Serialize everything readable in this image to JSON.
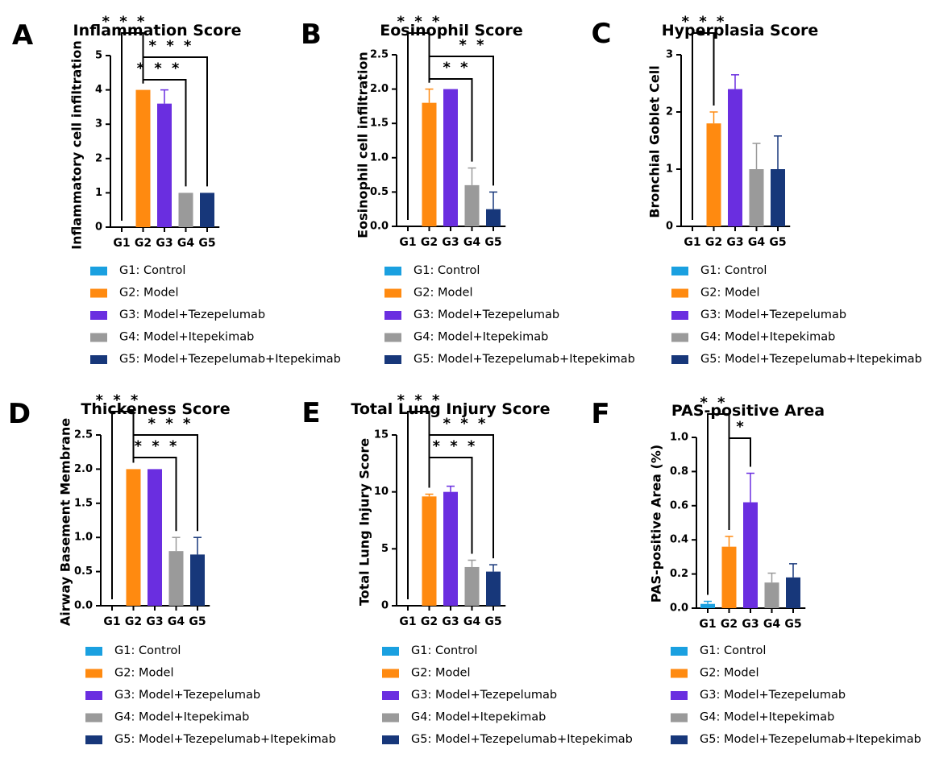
{
  "colors": {
    "G1": "#1aa0e0",
    "G2": "#ff8a10",
    "G3": "#6a2ee0",
    "G4": "#9a9a9a",
    "G5": "#17377a"
  },
  "legend": [
    {
      "key": "G1",
      "label": "G1: Control"
    },
    {
      "key": "G2",
      "label": "G2: Model"
    },
    {
      "key": "G3",
      "label": "G3: Model+Tezepelumab"
    },
    {
      "key": "G4",
      "label": "G4: Model+Itepekimab"
    },
    {
      "key": "G5",
      "label": "G5: Model+Tezepelumab+Itepekimab"
    }
  ],
  "chart_data": [
    {
      "panel": "A",
      "type": "bar",
      "title": "Inflammation Score",
      "ylabel": "Inflammatory cell infiltration",
      "categories": [
        "G1",
        "G2",
        "G3",
        "G4",
        "G5"
      ],
      "values": [
        0,
        4.0,
        3.6,
        1.0,
        1.0
      ],
      "errors": [
        0,
        0,
        0.4,
        0,
        0
      ],
      "ylim": [
        0,
        5
      ],
      "yticks": [
        0,
        1,
        2,
        3,
        4,
        5
      ],
      "significance": [
        {
          "from": "G1",
          "to": "G2",
          "label": "***"
        },
        {
          "from": "G2",
          "to": "G5",
          "label": "***"
        },
        {
          "from": "G2",
          "to": "G4",
          "label": "***"
        }
      ]
    },
    {
      "panel": "B",
      "type": "bar",
      "title": "Eosinophil Score",
      "ylabel": "Eosinophil cell infiltration",
      "categories": [
        "G1",
        "G2",
        "G3",
        "G4",
        "G5"
      ],
      "values": [
        0,
        1.8,
        2.0,
        0.6,
        0.25
      ],
      "errors": [
        0,
        0.2,
        0,
        0.25,
        0.25
      ],
      "ylim": [
        0,
        2.5
      ],
      "yticks": [
        0.0,
        0.5,
        1.0,
        1.5,
        2.0,
        2.5
      ],
      "significance": [
        {
          "from": "G1",
          "to": "G2",
          "label": "***"
        },
        {
          "from": "G2",
          "to": "G5",
          "label": "**"
        },
        {
          "from": "G2",
          "to": "G4",
          "label": "**"
        }
      ]
    },
    {
      "panel": "C",
      "type": "bar",
      "title": "Hyperplasia Score",
      "ylabel": "Bronchial Goblet Cell",
      "categories": [
        "G1",
        "G2",
        "G3",
        "G4",
        "G5"
      ],
      "values": [
        0,
        1.8,
        2.4,
        1.0,
        1.0
      ],
      "errors": [
        0,
        0.2,
        0.25,
        0.45,
        0.58
      ],
      "ylim": [
        0,
        3
      ],
      "yticks": [
        0,
        1,
        2,
        3
      ],
      "significance": [
        {
          "from": "G1",
          "to": "G2",
          "label": "***"
        }
      ]
    },
    {
      "panel": "D",
      "type": "bar",
      "title": "Thickeness Score",
      "ylabel": "Airway Basement Membrane",
      "categories": [
        "G1",
        "G2",
        "G3",
        "G4",
        "G5"
      ],
      "values": [
        0,
        2.0,
        2.0,
        0.8,
        0.75
      ],
      "errors": [
        0,
        0,
        0,
        0.2,
        0.25
      ],
      "ylim": [
        0,
        2.5
      ],
      "yticks": [
        0.0,
        0.5,
        1.0,
        1.5,
        2.0,
        2.5
      ],
      "significance": [
        {
          "from": "G1",
          "to": "G2",
          "label": "***"
        },
        {
          "from": "G2",
          "to": "G5",
          "label": "***"
        },
        {
          "from": "G2",
          "to": "G4",
          "label": "***"
        }
      ]
    },
    {
      "panel": "E",
      "type": "bar",
      "title": "Total Lung Injury Score",
      "ylabel": "Total Lung Injury Score",
      "categories": [
        "G1",
        "G2",
        "G3",
        "G4",
        "G5"
      ],
      "values": [
        0,
        9.6,
        10.0,
        3.4,
        3.0
      ],
      "errors": [
        0,
        0.2,
        0.5,
        0.6,
        0.6
      ],
      "ylim": [
        0,
        15
      ],
      "yticks": [
        0,
        5,
        10,
        15
      ],
      "significance": [
        {
          "from": "G1",
          "to": "G2",
          "label": "***"
        },
        {
          "from": "G2",
          "to": "G5",
          "label": "***"
        },
        {
          "from": "G2",
          "to": "G4",
          "label": "***"
        }
      ]
    },
    {
      "panel": "F",
      "type": "bar",
      "title": "PAS-positive Area",
      "ylabel": "PAS-positive Area (%)",
      "categories": [
        "G1",
        "G2",
        "G3",
        "G4",
        "G5"
      ],
      "values": [
        0.025,
        0.36,
        0.62,
        0.15,
        0.18
      ],
      "errors": [
        0.015,
        0.06,
        0.17,
        0.055,
        0.08
      ],
      "ylim": [
        0,
        1.0
      ],
      "yticks": [
        0.0,
        0.2,
        0.4,
        0.6,
        0.8,
        1.0
      ],
      "significance": [
        {
          "from": "G1",
          "to": "G2",
          "label": "**"
        },
        {
          "from": "G2",
          "to": "G3",
          "label": "*"
        }
      ]
    }
  ]
}
